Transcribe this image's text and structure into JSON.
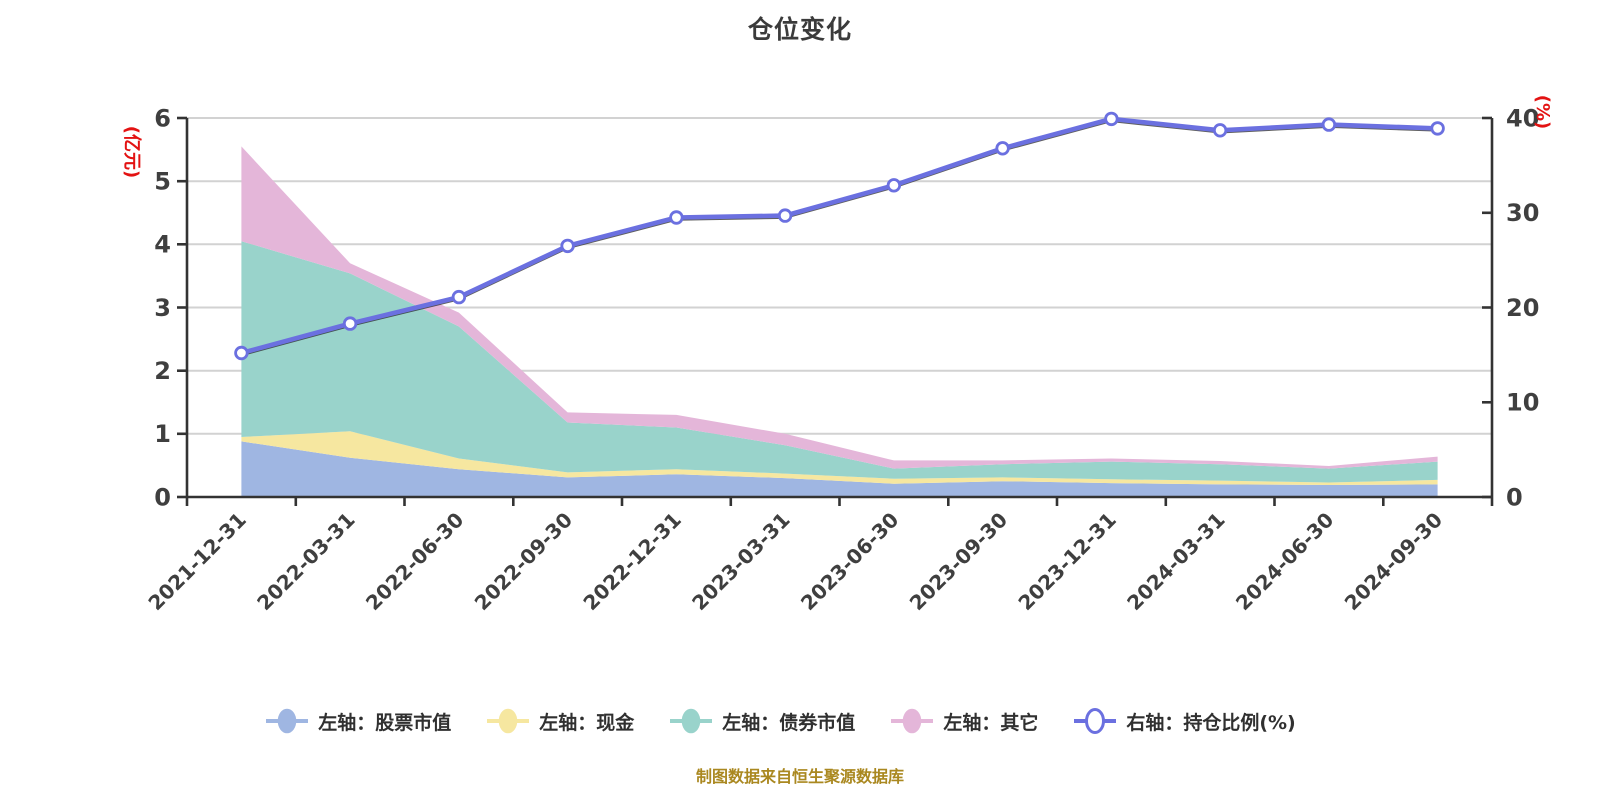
{
  "title": "仓位变化",
  "footer": "制图数据来自恒生聚源数据库",
  "colors": {
    "background": "#ffffff",
    "grid": "#d2d2d2",
    "axis": "#333333",
    "tick_label": "#3f3f3f",
    "axis_unit_label": "#e31212",
    "title": "#3b3b3b",
    "legend_text": "#303030",
    "footer": "#aa8820",
    "line_shadow": "#2a2a2a"
  },
  "chart_data": {
    "type": "area",
    "title": "仓位变化",
    "stacked": true,
    "grid": true,
    "legend_position": "bottom",
    "categories": [
      "2021-12-31",
      "2022-03-31",
      "2022-06-30",
      "2022-09-30",
      "2022-12-31",
      "2023-03-31",
      "2023-06-30",
      "2023-09-30",
      "2023-12-31",
      "2024-03-31",
      "2024-06-30",
      "2024-09-30"
    ],
    "left_axis": {
      "name": "(亿元)",
      "min": 0,
      "max": 6,
      "ticks": [
        0,
        1,
        2,
        3,
        4,
        5,
        6
      ]
    },
    "right_axis": {
      "name": "(%)",
      "min": 0,
      "max": 40,
      "ticks": [
        0,
        10,
        20,
        30,
        40
      ]
    },
    "series": [
      {
        "name": "左轴：股票市值",
        "type": "area",
        "axis": "left",
        "color": "#9fb6e2",
        "values": [
          0.88,
          0.62,
          0.44,
          0.31,
          0.36,
          0.3,
          0.21,
          0.25,
          0.22,
          0.2,
          0.19,
          0.2
        ]
      },
      {
        "name": "左轴：现金",
        "type": "area",
        "axis": "left",
        "color": "#f6e7a0",
        "values": [
          0.07,
          0.42,
          0.17,
          0.08,
          0.08,
          0.07,
          0.08,
          0.06,
          0.06,
          0.06,
          0.04,
          0.07
        ]
      },
      {
        "name": "左轴：债券市值",
        "type": "area",
        "axis": "left",
        "color": "#99d3cb",
        "values": [
          3.1,
          2.5,
          2.09,
          0.79,
          0.66,
          0.45,
          0.16,
          0.21,
          0.28,
          0.26,
          0.22,
          0.29
        ]
      },
      {
        "name": "左轴：其它",
        "type": "area",
        "axis": "left",
        "color": "#e4b6d9",
        "values": [
          1.5,
          0.16,
          0.22,
          0.16,
          0.2,
          0.18,
          0.13,
          0.06,
          0.05,
          0.05,
          0.04,
          0.08
        ]
      },
      {
        "name": "右轴：持仓比例(%)",
        "type": "line",
        "axis": "right",
        "color": "#6b70e0",
        "marker": "white-circle",
        "values": [
          15.2,
          18.3,
          21.1,
          26.5,
          29.5,
          29.7,
          32.9,
          36.8,
          39.9,
          38.7,
          39.3,
          38.9
        ]
      }
    ]
  }
}
